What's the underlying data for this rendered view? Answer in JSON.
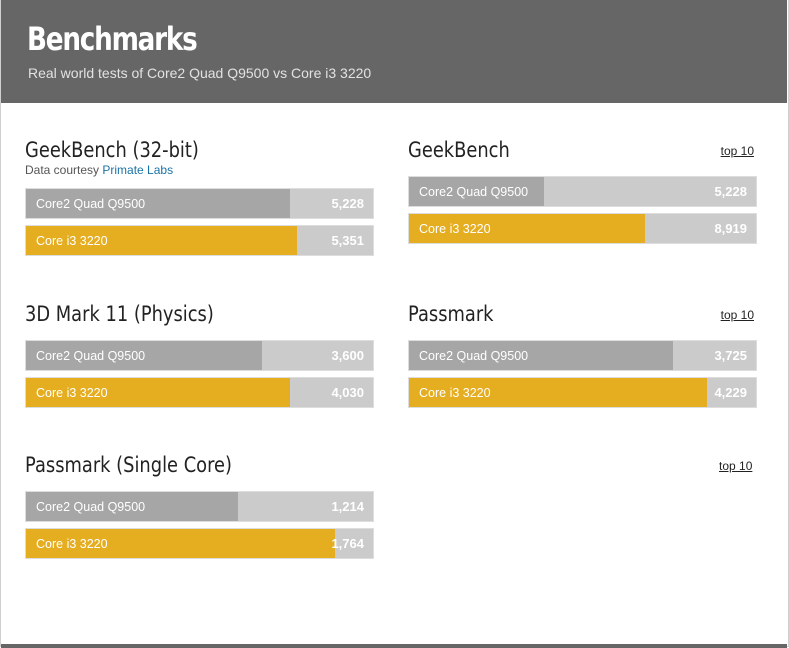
{
  "header": {
    "title": "Benchmarks",
    "subtitle": "Real world tests of Core2 Quad Q9500 vs Core i3 3220"
  },
  "colors": {
    "cpu1": "#a6a6a6",
    "cpu2": "#e5ad20",
    "track": "#cbcbcb",
    "header": "#666666"
  },
  "top10_label": "top 10",
  "chart_data": [
    {
      "type": "bar",
      "title": "GeekBench (32-bit)",
      "credit_prefix": "Data courtesy ",
      "credit_link": "Primate Labs",
      "categories": [
        "Core2 Quad Q9500",
        "Core i3 3220"
      ],
      "values": [
        5228,
        5351
      ],
      "value_labels": [
        "5,228",
        "5,351"
      ],
      "fill_fraction": [
        0.76,
        0.78
      ],
      "top10": false
    },
    {
      "type": "bar",
      "title": "GeekBench",
      "categories": [
        "Core2 Quad Q9500",
        "Core i3 3220"
      ],
      "values": [
        5228,
        8919
      ],
      "value_labels": [
        "5,228",
        "8,919"
      ],
      "fill_fraction": [
        0.39,
        0.68
      ],
      "top10": true
    },
    {
      "type": "bar",
      "title": "3D Mark 11 (Physics)",
      "categories": [
        "Core2 Quad Q9500",
        "Core i3 3220"
      ],
      "values": [
        3600,
        4030
      ],
      "value_labels": [
        "3,600",
        "4,030"
      ],
      "fill_fraction": [
        0.68,
        0.76
      ],
      "top10": false
    },
    {
      "type": "bar",
      "title": "Passmark",
      "categories": [
        "Core2 Quad Q9500",
        "Core i3 3220"
      ],
      "values": [
        3725,
        4229
      ],
      "value_labels": [
        "3,725",
        "4,229"
      ],
      "fill_fraction": [
        0.76,
        0.86
      ],
      "top10": true
    },
    {
      "type": "bar",
      "title": "Passmark (Single Core)",
      "categories": [
        "Core2 Quad Q9500",
        "Core i3 3220"
      ],
      "values": [
        1214,
        1764
      ],
      "value_labels": [
        "1,214",
        "1,764"
      ],
      "fill_fraction": [
        0.61,
        0.89
      ],
      "top10": false
    }
  ],
  "orphan_top10": true
}
